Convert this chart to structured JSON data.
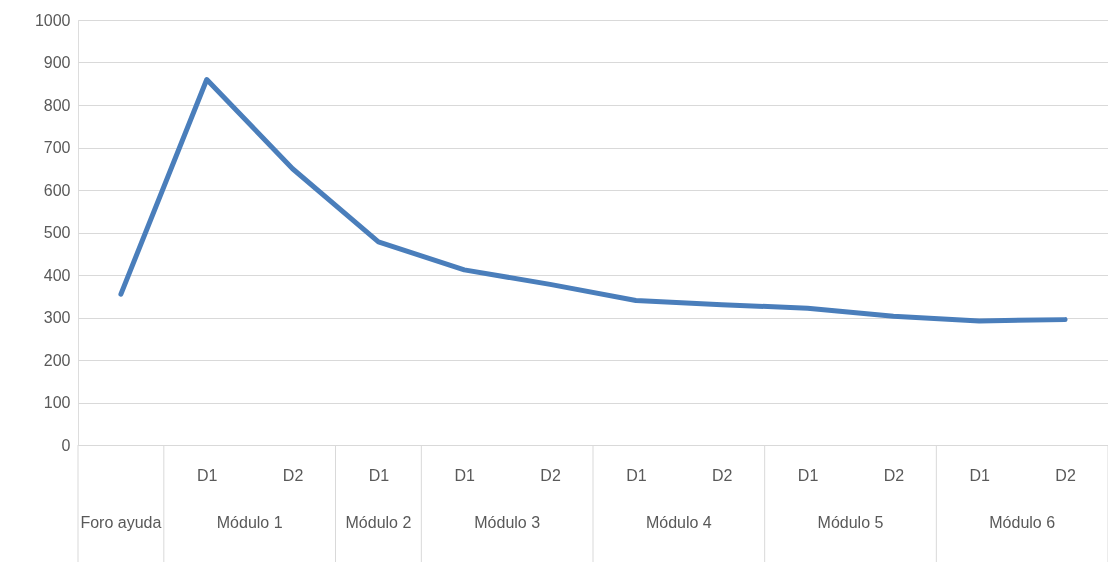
{
  "chart_data": {
    "type": "line",
    "categories": [
      null,
      "D1",
      "D2",
      "D1",
      "D1",
      "D2",
      "D1",
      "D2",
      "D1",
      "D2",
      "D1",
      "D2"
    ],
    "values": [
      355,
      860,
      650,
      478,
      412,
      378,
      340,
      330,
      322,
      303,
      292,
      295
    ],
    "color": "#4a7ebb",
    "ylim": [
      0,
      1000
    ],
    "yticks": [
      0,
      100,
      200,
      300,
      400,
      500,
      600,
      700,
      800,
      900,
      1000
    ],
    "grid": "y",
    "annotations": [
      "Foro ayuda",
      "Módulo 1",
      "Módulo 2",
      "Módulo 3",
      "Módulo 4",
      "Módulo 5",
      "Módulo 6"
    ]
  }
}
